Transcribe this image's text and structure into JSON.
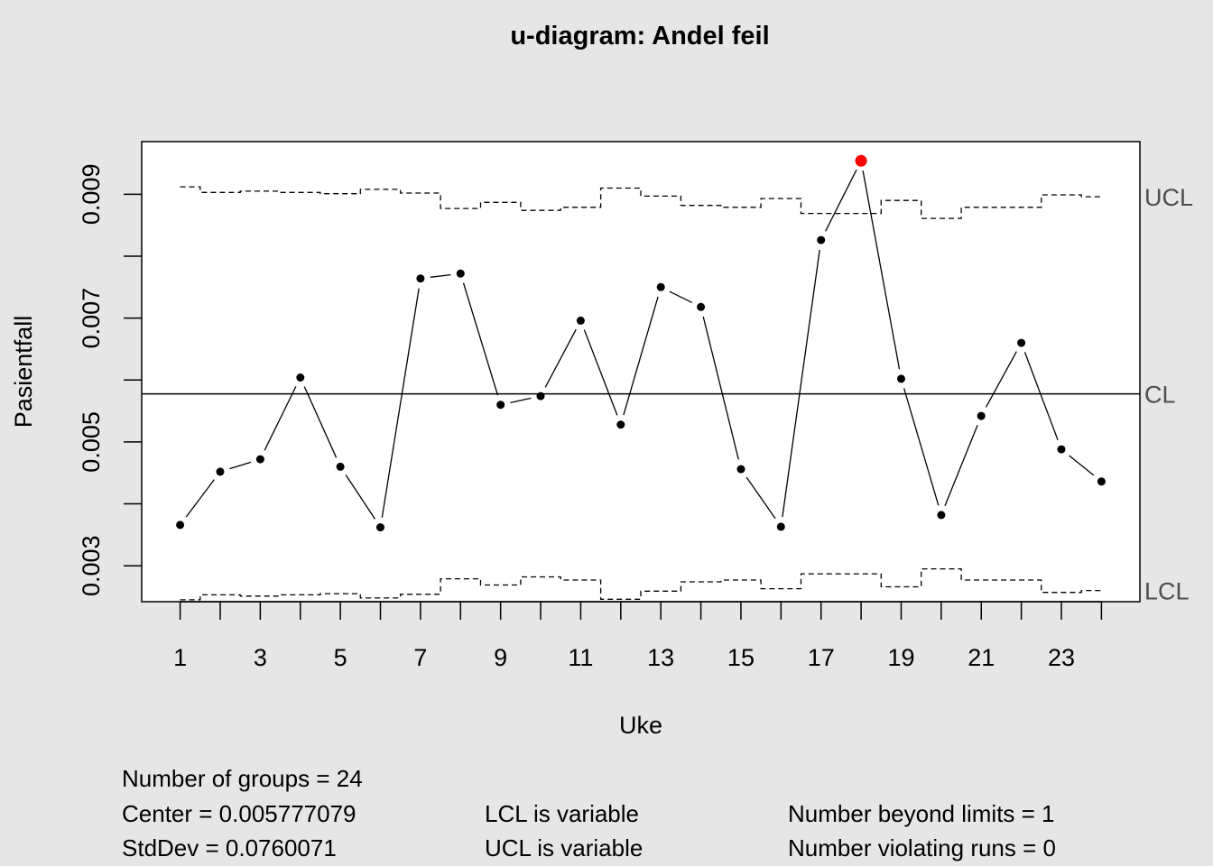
{
  "chart_data": {
    "type": "line",
    "title": "u-diagram: Andel feil",
    "xlabel": "Uke",
    "ylabel": "Pasientfall",
    "x": [
      1,
      2,
      3,
      4,
      5,
      6,
      7,
      8,
      9,
      10,
      11,
      12,
      13,
      14,
      15,
      16,
      17,
      18,
      19,
      20,
      21,
      22,
      23,
      24
    ],
    "x_tick_labels": [
      "1",
      "3",
      "5",
      "7",
      "9",
      "11",
      "13",
      "15",
      "17",
      "19",
      "21",
      "23"
    ],
    "y_tick_labels": [
      "0.003",
      "0.005",
      "0.007",
      "0.009"
    ],
    "y_ticks": [
      0.003,
      0.004,
      0.005,
      0.006,
      0.007,
      0.008,
      0.009
    ],
    "xlim": [
      0.04,
      24.96
    ],
    "ylim": [
      0.00242,
      0.00985
    ],
    "series": [
      {
        "values": [
          0.00366,
          0.00452,
          0.00472,
          0.00604,
          0.0046,
          0.00362,
          0.00764,
          0.00772,
          0.0056,
          0.00574,
          0.00696,
          0.00528,
          0.0075,
          0.00718,
          0.00456,
          0.00363,
          0.00826,
          0.00954,
          0.00602,
          0.00382,
          0.00542,
          0.0066,
          0.00488,
          0.00436
        ],
        "color": "#000000"
      }
    ],
    "center_line": 0.005777079,
    "ucl": [
      0.00912,
      0.00903,
      0.00905,
      0.00903,
      0.00901,
      0.00908,
      0.00902,
      0.00877,
      0.00887,
      0.00874,
      0.00879,
      0.0091,
      0.00897,
      0.00882,
      0.00879,
      0.00893,
      0.00869,
      0.00869,
      0.0089,
      0.00861,
      0.00879,
      0.00879,
      0.00899,
      0.00896
    ],
    "lcl": [
      0.00245,
      0.00253,
      0.00251,
      0.00253,
      0.00255,
      0.00248,
      0.00254,
      0.00279,
      0.00269,
      0.00282,
      0.00277,
      0.00246,
      0.00259,
      0.00274,
      0.00277,
      0.00263,
      0.00287,
      0.00287,
      0.00266,
      0.00295,
      0.00277,
      0.00277,
      0.00257,
      0.0026
    ],
    "limit_labels": {
      "ucl": "UCL",
      "cl": "CL",
      "lcl": "LCL"
    },
    "beyond_limit_color": "#ff0000",
    "grid": false,
    "legend": "none"
  },
  "summary": {
    "number_of_groups": "Number of groups = 24",
    "center": "Center = 0.005777079",
    "stddev": "StdDev = 0.0760071",
    "lcl_note": "LCL is variable",
    "ucl_note": "UCL is variable",
    "beyond_limits": "Number beyond limits = 1",
    "violating_runs": "Number violating runs = 0"
  }
}
